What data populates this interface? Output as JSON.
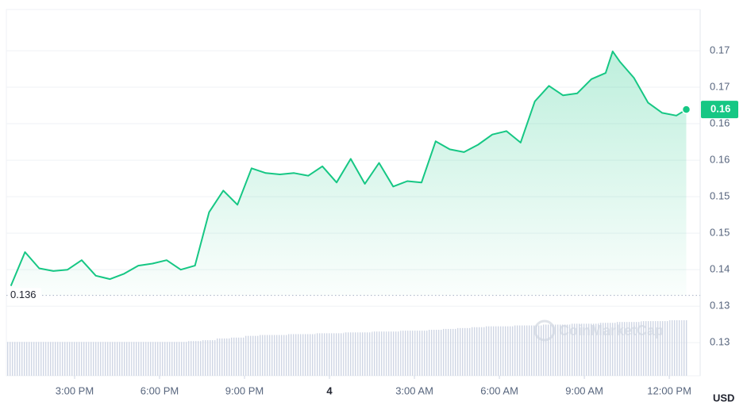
{
  "chart_data": {
    "type": "line",
    "x": [
      12.75,
      13.25,
      13.75,
      14.25,
      14.75,
      15.25,
      15.75,
      16.25,
      16.75,
      17.25,
      17.75,
      18.25,
      18.75,
      19.25,
      19.75,
      20.25,
      20.75,
      21.25,
      21.75,
      22.25,
      22.75,
      23.25,
      23.75,
      24.25,
      24.75,
      25.25,
      25.75,
      26.25,
      26.75,
      27.25,
      27.75,
      28.25,
      28.75,
      29.25,
      29.75,
      30.25,
      30.75,
      31.25,
      31.75,
      32.25,
      32.75,
      33.25,
      33.75,
      34.0,
      34.25,
      34.75,
      35.25,
      35.75,
      36.25,
      36.6
    ],
    "series": [
      {
        "name": "Price",
        "color": "#16c784",
        "values": [
          0.1374,
          0.1424,
          0.14,
          0.1396,
          0.1398,
          0.1412,
          0.1389,
          0.1384,
          0.1392,
          0.1404,
          0.1407,
          0.1412,
          0.1398,
          0.1404,
          0.1483,
          0.1515,
          0.1494,
          0.1548,
          0.1541,
          0.1539,
          0.1541,
          0.1537,
          0.1551,
          0.1527,
          0.1562,
          0.1525,
          0.1556,
          0.1521,
          0.1529,
          0.1527,
          0.1588,
          0.1576,
          0.1572,
          0.1583,
          0.1598,
          0.1603,
          0.1586,
          0.1647,
          0.167,
          0.1656,
          0.1659,
          0.168,
          0.1689,
          0.1721,
          0.1706,
          0.1682,
          0.1645,
          0.163,
          0.1626,
          0.1635
        ]
      },
      {
        "name": "Volume",
        "color": "#cfd6e4",
        "values": [
          39,
          39,
          39,
          39,
          39,
          39,
          39,
          39,
          39,
          39,
          39,
          39,
          39,
          40,
          41,
          43,
          44,
          46,
          47,
          47,
          48,
          48,
          49,
          49,
          50,
          50,
          51,
          51,
          52,
          52,
          53,
          54,
          55,
          56,
          57,
          57,
          58,
          58,
          59,
          59,
          60,
          60,
          61,
          61,
          62,
          62,
          63,
          63,
          64,
          64
        ]
      }
    ],
    "xlim": [
      12.59,
      37.09
    ],
    "xticks": [
      {
        "value": 15,
        "label": "3:00 PM"
      },
      {
        "value": 18,
        "label": "6:00 PM"
      },
      {
        "value": 21,
        "label": "9:00 PM"
      },
      {
        "value": 24,
        "label": "4"
      },
      {
        "value": 27,
        "label": "3:00 AM"
      },
      {
        "value": 30,
        "label": "6:00 AM"
      },
      {
        "value": 33,
        "label": "9:00 AM"
      },
      {
        "value": 36,
        "label": "12:00 PM"
      }
    ],
    "ylim": [
      0.1241,
      0.1783
    ],
    "yticks": [
      {
        "value": 0.129,
        "label": "0.13"
      },
      {
        "value": 0.1344,
        "label": "0.13"
      },
      {
        "value": 0.1398,
        "label": "0.14"
      },
      {
        "value": 0.1452,
        "label": "0.15"
      },
      {
        "value": 0.1506,
        "label": "0.15"
      },
      {
        "value": 0.156,
        "label": "0.16"
      },
      {
        "value": 0.1614,
        "label": "0.16"
      },
      {
        "value": 0.1668,
        "label": "0.17"
      },
      {
        "value": 0.1722,
        "label": "0.17"
      }
    ],
    "baseline": 0.136,
    "current": {
      "value": 0.1635,
      "label": "0.16"
    },
    "currency": "USD",
    "watermark": "CoinMarketCap",
    "grid": true
  }
}
